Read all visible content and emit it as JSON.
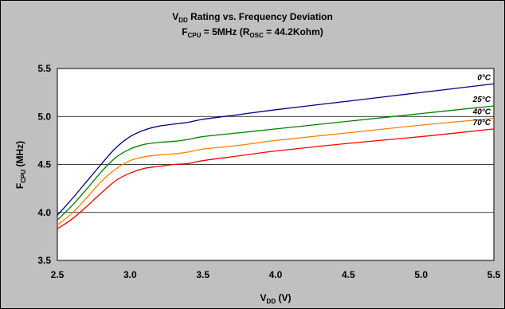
{
  "chart_data": {
    "type": "line",
    "title": {
      "line1": {
        "pre": "V",
        "sub": "DD",
        "post": " Rating vs. Frequency Deviation"
      },
      "line2": {
        "pre": "F",
        "sub": "CPU",
        "mid": " = 5MHz (R",
        "sub2": "OSC",
        "post": " = 44.2Kohm)"
      }
    },
    "xlabel": {
      "main": "V",
      "sub": "DD",
      "post": " (V)"
    },
    "ylabel": {
      "main": "F",
      "sub": "CPU",
      "post": " (MHz)"
    },
    "xlim": [
      2.5,
      5.5
    ],
    "ylim": [
      3.5,
      5.5
    ],
    "x_ticks": [
      "2.5",
      "3.0",
      "3.5",
      "4.0",
      "4.5",
      "5.0",
      "5.5"
    ],
    "y_ticks": [
      "3.5",
      "4.0",
      "4.5",
      "5.0",
      "5.5"
    ],
    "grid": "horizontal",
    "series": [
      {
        "name": "0°C",
        "color": "#000080",
        "points": [
          [
            2.5,
            3.97
          ],
          [
            2.6,
            4.14
          ],
          [
            2.7,
            4.32
          ],
          [
            2.8,
            4.5
          ],
          [
            2.9,
            4.67
          ],
          [
            3.0,
            4.79
          ],
          [
            3.1,
            4.86
          ],
          [
            3.2,
            4.9
          ],
          [
            3.3,
            4.92
          ],
          [
            3.4,
            4.94
          ],
          [
            3.5,
            4.97
          ],
          [
            3.75,
            5.02
          ],
          [
            4.0,
            5.07
          ],
          [
            4.5,
            5.16
          ],
          [
            5.0,
            5.25
          ],
          [
            5.5,
            5.34
          ]
        ]
      },
      {
        "name": "25°C",
        "color": "#008000",
        "points": [
          [
            2.5,
            3.92
          ],
          [
            2.6,
            4.07
          ],
          [
            2.7,
            4.24
          ],
          [
            2.8,
            4.42
          ],
          [
            2.9,
            4.57
          ],
          [
            3.0,
            4.66
          ],
          [
            3.1,
            4.71
          ],
          [
            3.2,
            4.73
          ],
          [
            3.3,
            4.74
          ],
          [
            3.4,
            4.76
          ],
          [
            3.5,
            4.79
          ],
          [
            3.75,
            4.83
          ],
          [
            4.0,
            4.87
          ],
          [
            4.5,
            4.95
          ],
          [
            5.0,
            5.03
          ],
          [
            5.5,
            5.11
          ]
        ]
      },
      {
        "name": "40°C",
        "color": "#ff8000",
        "points": [
          [
            2.5,
            3.87
          ],
          [
            2.6,
            3.99
          ],
          [
            2.7,
            4.15
          ],
          [
            2.8,
            4.32
          ],
          [
            2.9,
            4.45
          ],
          [
            3.0,
            4.54
          ],
          [
            3.1,
            4.58
          ],
          [
            3.2,
            4.6
          ],
          [
            3.3,
            4.61
          ],
          [
            3.4,
            4.63
          ],
          [
            3.5,
            4.66
          ],
          [
            3.75,
            4.7
          ],
          [
            4.0,
            4.75
          ],
          [
            4.5,
            4.83
          ],
          [
            5.0,
            4.91
          ],
          [
            5.5,
            4.98
          ]
        ]
      },
      {
        "name": "70°C",
        "color": "#ff0000",
        "points": [
          [
            2.5,
            3.83
          ],
          [
            2.6,
            3.93
          ],
          [
            2.7,
            4.06
          ],
          [
            2.8,
            4.2
          ],
          [
            2.9,
            4.33
          ],
          [
            3.0,
            4.41
          ],
          [
            3.1,
            4.46
          ],
          [
            3.2,
            4.48
          ],
          [
            3.3,
            4.5
          ],
          [
            3.4,
            4.51
          ],
          [
            3.5,
            4.54
          ],
          [
            3.75,
            4.59
          ],
          [
            4.0,
            4.64
          ],
          [
            4.5,
            4.72
          ],
          [
            5.0,
            4.79
          ],
          [
            5.5,
            4.87
          ]
        ]
      }
    ]
  }
}
